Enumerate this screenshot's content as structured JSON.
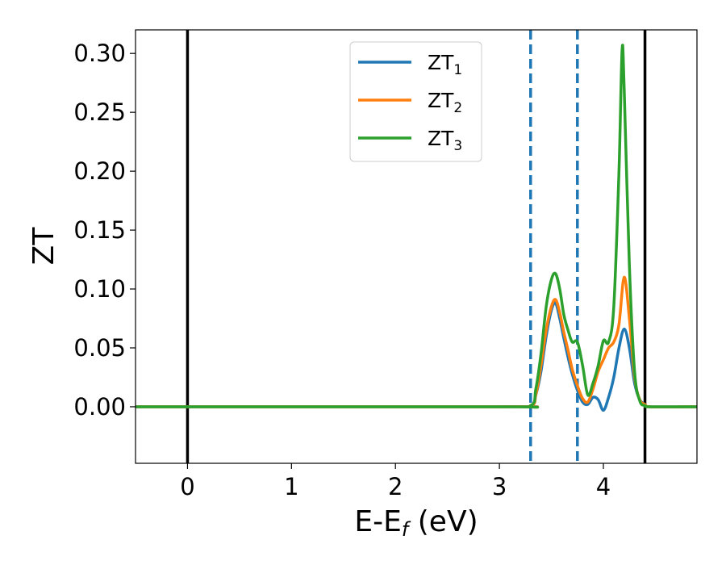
{
  "chart_data": {
    "type": "line",
    "xlabel": "E-E",
    "xlabel_sub": "f",
    "xlabel_unit": " (eV)",
    "ylabel": "ZT",
    "xlim": [
      -0.5,
      4.9
    ],
    "ylim": [
      -0.048,
      0.32
    ],
    "xticks": [
      0,
      1,
      2,
      3,
      4
    ],
    "xtick_labels": [
      "0",
      "1",
      "2",
      "3",
      "4"
    ],
    "yticks": [
      0.0,
      0.05,
      0.1,
      0.15,
      0.2,
      0.25,
      0.3
    ],
    "ytick_labels": [
      "0.00",
      "0.05",
      "0.10",
      "0.15",
      "0.20",
      "0.25",
      "0.30"
    ],
    "grid": false,
    "legend_position": "top-center",
    "vlines": [
      {
        "x": 0.0,
        "style": "solid",
        "color": "#000000"
      },
      {
        "x": 4.4,
        "style": "solid",
        "color": "#000000"
      },
      {
        "x": 3.3,
        "style": "dashed",
        "color": "#1f77b4"
      },
      {
        "x": 3.75,
        "style": "dashed",
        "color": "#1f77b4"
      }
    ],
    "series": [
      {
        "name": "ZT",
        "name_sub": "1",
        "color": "#1f77b4",
        "x": [
          -0.5,
          3.0,
          3.3,
          3.35,
          3.4,
          3.45,
          3.5,
          3.54,
          3.58,
          3.62,
          3.66,
          3.7,
          3.75,
          3.8,
          3.85,
          3.9,
          3.95,
          4.0,
          4.05,
          4.1,
          4.15,
          4.2,
          4.25,
          4.3,
          4.35,
          4.4,
          4.45,
          4.9
        ],
        "y": [
          0.0,
          0.0,
          0.001,
          0.01,
          0.03,
          0.06,
          0.082,
          0.088,
          0.075,
          0.058,
          0.042,
          0.028,
          0.014,
          0.004,
          0.002,
          0.008,
          0.006,
          -0.003,
          0.008,
          0.025,
          0.05,
          0.066,
          0.05,
          0.02,
          0.006,
          0.002,
          0.0,
          0.0
        ]
      },
      {
        "name": "ZT",
        "name_sub": "2",
        "color": "#ff7f0e",
        "x": [
          -0.5,
          3.0,
          3.3,
          3.35,
          3.4,
          3.45,
          3.5,
          3.54,
          3.58,
          3.62,
          3.66,
          3.7,
          3.75,
          3.8,
          3.85,
          3.9,
          3.95,
          4.0,
          4.05,
          4.1,
          4.15,
          4.2,
          4.25,
          4.3,
          4.35,
          4.4,
          4.45,
          4.9
        ],
        "y": [
          0.0,
          0.0,
          0.001,
          0.01,
          0.035,
          0.065,
          0.085,
          0.091,
          0.08,
          0.063,
          0.048,
          0.032,
          0.018,
          0.007,
          0.004,
          0.015,
          0.03,
          0.04,
          0.05,
          0.055,
          0.07,
          0.11,
          0.075,
          0.025,
          0.006,
          0.002,
          0.0,
          0.0
        ]
      },
      {
        "name": "ZT",
        "name_sub": "3",
        "color": "#2ca02c",
        "x": [
          -0.5,
          3.0,
          3.3,
          3.35,
          3.4,
          3.45,
          3.5,
          3.54,
          3.58,
          3.62,
          3.66,
          3.7,
          3.75,
          3.8,
          3.85,
          3.9,
          3.95,
          4.0,
          4.05,
          4.1,
          4.15,
          4.18,
          4.2,
          4.25,
          4.3,
          4.35,
          4.4,
          4.45,
          4.9
        ],
        "y": [
          0.0,
          0.0,
          0.001,
          0.015,
          0.045,
          0.085,
          0.108,
          0.113,
          0.1,
          0.078,
          0.065,
          0.055,
          0.055,
          0.035,
          0.01,
          0.02,
          0.035,
          0.056,
          0.055,
          0.085,
          0.2,
          0.303,
          0.27,
          0.12,
          0.03,
          0.005,
          0.001,
          0.0,
          0.0
        ]
      }
    ]
  }
}
